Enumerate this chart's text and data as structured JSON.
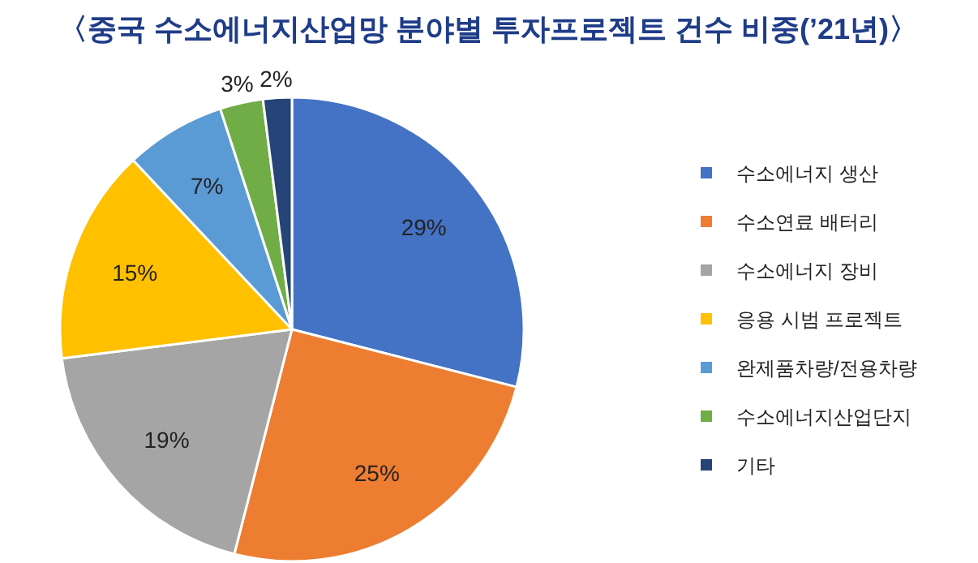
{
  "chart_data": {
    "type": "pie",
    "title": "〈중국 수소에너지산업망 분야별 투자프로젝트 건수 비중(’21년)〉",
    "categories": [
      "수소에너지 생산",
      "수소연료 배터리",
      "수소에너지 장비",
      "응용 시범 프로젝트",
      "완제품차량/전용차량",
      "수소에너지산업단지",
      "기타"
    ],
    "values": [
      29,
      25,
      19,
      15,
      7,
      3,
      2
    ],
    "colors": [
      "#4472c4",
      "#ed7d31",
      "#a5a5a5",
      "#ffc000",
      "#5b9bd5",
      "#70ad47",
      "#264478"
    ],
    "value_labels": [
      "29%",
      "25%",
      "19%",
      "15%",
      "7%",
      "3%",
      "2%"
    ],
    "legend": "right"
  }
}
